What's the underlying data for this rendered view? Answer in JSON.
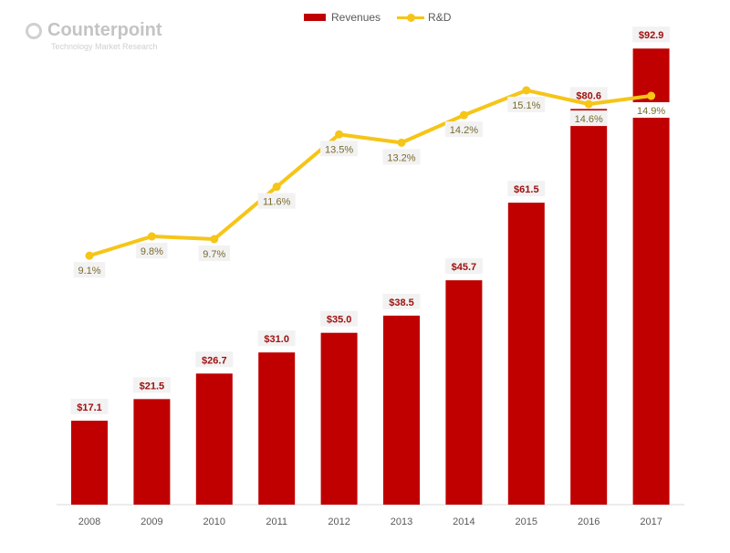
{
  "logo": {
    "name": "Counterpoint",
    "tagline": "Technology Market Research"
  },
  "chart_data": {
    "type": "bar+line",
    "categories": [
      "2008",
      "2009",
      "2010",
      "2011",
      "2012",
      "2013",
      "2014",
      "2015",
      "2016",
      "2017"
    ],
    "series": [
      {
        "name": "Revenues",
        "type": "bar",
        "axis": "primary",
        "color": "#c00000",
        "values": [
          17.1,
          21.5,
          26.7,
          31.0,
          35.0,
          38.5,
          45.7,
          61.5,
          80.6,
          92.9
        ],
        "labels": [
          "$17.1",
          "$21.5",
          "$26.7",
          "$31.0",
          "$35.0",
          "$38.5",
          "$45.7",
          "$61.5",
          "$80.6",
          "$92.9"
        ]
      },
      {
        "name": "R&D",
        "type": "line",
        "axis": "secondary",
        "color": "#f5c518",
        "values": [
          9.1,
          9.8,
          9.7,
          11.6,
          13.5,
          13.2,
          14.2,
          15.1,
          14.6,
          14.9
        ],
        "labels": [
          "9.1%",
          "9.8%",
          "9.7%",
          "11.6%",
          "13.5%",
          "13.2%",
          "14.2%",
          "15.1%",
          "14.6%",
          "14.9%"
        ]
      }
    ],
    "legend_position": "top",
    "grid": false,
    "y_axis_visible": false
  }
}
